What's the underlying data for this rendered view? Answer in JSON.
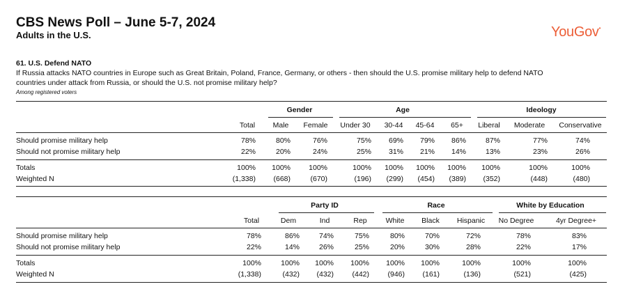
{
  "header": {
    "title": "CBS News Poll – June 5-7, 2024",
    "subtitle": "Adults in the U.S.",
    "logo": "YouGov"
  },
  "question": {
    "number_title": "61. U.S. Defend NATO",
    "text": "If Russia attacks NATO countries in Europe such as Great Britain, Poland, France, Germany, or others - then should the U.S. promise military help to defend NATO countries under attack from Russia, or should the U.S. not promise military help?",
    "note": "Among registered voters"
  },
  "table1": {
    "groups": [
      "Gender",
      "Age",
      "Ideology"
    ],
    "columns": [
      "Total",
      "Male",
      "Female",
      "Under 30",
      "30-44",
      "45-64",
      "65+",
      "Liberal",
      "Moderate",
      "Conservative"
    ],
    "rows": [
      {
        "label": "Should promise military help",
        "values": [
          "78%",
          "80%",
          "76%",
          "75%",
          "69%",
          "79%",
          "86%",
          "87%",
          "77%",
          "74%"
        ]
      },
      {
        "label": "Should not promise military help",
        "values": [
          "22%",
          "20%",
          "24%",
          "25%",
          "31%",
          "21%",
          "14%",
          "13%",
          "23%",
          "26%"
        ]
      },
      {
        "label": "Totals",
        "values": [
          "100%",
          "100%",
          "100%",
          "100%",
          "100%",
          "100%",
          "100%",
          "100%",
          "100%",
          "100%"
        ]
      },
      {
        "label": "Weighted N",
        "values": [
          "(1,338)",
          "(668)",
          "(670)",
          "(196)",
          "(299)",
          "(454)",
          "(389)",
          "(352)",
          "(448)",
          "(480)"
        ]
      }
    ]
  },
  "table2": {
    "groups": [
      "Party ID",
      "Race",
      "White by Education"
    ],
    "columns": [
      "Total",
      "Dem",
      "Ind",
      "Rep",
      "White",
      "Black",
      "Hispanic",
      "No Degree",
      "4yr Degree+"
    ],
    "rows": [
      {
        "label": "Should promise military help",
        "values": [
          "78%",
          "86%",
          "74%",
          "75%",
          "80%",
          "70%",
          "72%",
          "78%",
          "83%"
        ]
      },
      {
        "label": "Should not promise military help",
        "values": [
          "22%",
          "14%",
          "26%",
          "25%",
          "20%",
          "30%",
          "28%",
          "22%",
          "17%"
        ]
      },
      {
        "label": "Totals",
        "values": [
          "100%",
          "100%",
          "100%",
          "100%",
          "100%",
          "100%",
          "100%",
          "100%",
          "100%"
        ]
      },
      {
        "label": "Weighted N",
        "values": [
          "(1,338)",
          "(432)",
          "(432)",
          "(442)",
          "(946)",
          "(161)",
          "(136)",
          "(521)",
          "(425)"
        ]
      }
    ]
  }
}
